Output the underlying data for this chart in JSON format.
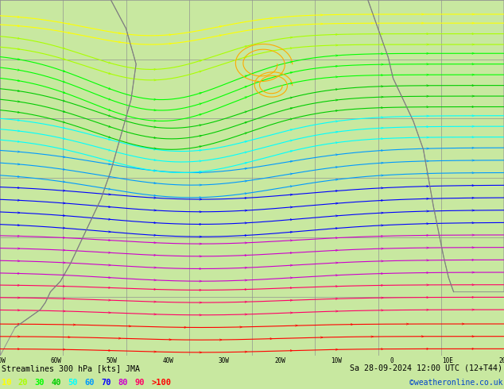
{
  "title_left": "Streamlines 300 hPa [kts] JMA",
  "title_right": "Sa 28-09-2024 12:00 UTC (12+T44)",
  "credit": "©weatheronline.co.uk",
  "legend_values": [
    "10",
    "20",
    "30",
    "40",
    "50",
    "60",
    "70",
    "80",
    "90",
    ">100"
  ],
  "legend_colors": [
    "#ffff00",
    "#aaff00",
    "#00ff00",
    "#00cc00",
    "#00ffff",
    "#0099ff",
    "#0000ff",
    "#cc00cc",
    "#ff0066",
    "#ff0000"
  ],
  "bg_color": "#c8e8a0",
  "ocean_color": "#d8d8d8",
  "land_color": "#c8e8a0",
  "grid_color": "#909090",
  "bottom_bar_color": "#ffffff",
  "figsize": [
    6.34,
    4.9
  ],
  "dpi": 100,
  "speed_colors": {
    "10": "#ffff00",
    "20": "#aaff00",
    "30": "#00ff00",
    "40": "#00cc00",
    "50": "#00ffff",
    "60": "#0099ff",
    "70": "#0000ff",
    "80": "#cc00cc",
    "90": "#ff0066",
    "100": "#ff0000"
  }
}
